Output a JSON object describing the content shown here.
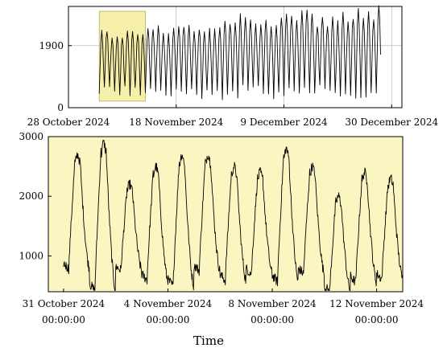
{
  "colors": {
    "highlight_fill": "#fbf6c1",
    "highlight_box": "#f5ec9a",
    "highlight_stroke": "#b5ad6a",
    "line": "#000000",
    "grid": "#bdbdbd"
  },
  "chart_data": [
    {
      "id": "overview",
      "type": "line",
      "title": "",
      "xlabel": "",
      "ylabel": "",
      "x_unit": "days since 28 October 2024",
      "xlim": [
        0,
        65
      ],
      "ylim": [
        0,
        3100
      ],
      "grid": true,
      "y_ticks": [
        {
          "value": 0,
          "label": "0"
        },
        {
          "value": 1900,
          "label": "1900"
        }
      ],
      "x_ticks": [
        {
          "value": 0,
          "label": "28 October 2024"
        },
        {
          "value": 21,
          "label": "18 November 2024"
        },
        {
          "value": 42,
          "label": "9 December 2024"
        },
        {
          "value": 63,
          "label": "30 December 2024"
        }
      ],
      "highlight_range": {
        "x": [
          6,
          15
        ],
        "y": [
          200,
          2950
        ]
      },
      "series": [
        {
          "name": "",
          "x_start": 6,
          "x_end": 61,
          "daily_cycle": true,
          "peak_range": [
            2000,
            3050
          ],
          "trough_range": [
            300,
            650
          ]
        }
      ]
    },
    {
      "id": "zoom",
      "type": "line",
      "title": "",
      "xlabel": "Time",
      "ylabel": "",
      "xlim": [
        "2024-10-30T10:00",
        "2024-11-13T00:00"
      ],
      "ylim": [
        400,
        3000
      ],
      "grid": false,
      "y_ticks": [
        {
          "value": 1000,
          "label": "1000"
        },
        {
          "value": 2000,
          "label": "2000"
        },
        {
          "value": 3000,
          "label": "3000"
        }
      ],
      "x_ticks": [
        {
          "value": "2024-10-31T00:00",
          "line1": "31 October 2024",
          "line2": "00:00:00"
        },
        {
          "value": "2024-11-04T00:00",
          "line1": "4 November 2024",
          "line2": "00:00:00"
        },
        {
          "value": "2024-11-08T00:00",
          "line1": "8 November 2024",
          "line2": "00:00:00"
        },
        {
          "value": "2024-11-12T00:00",
          "line1": "12 November 2024",
          "line2": "00:00:00"
        }
      ],
      "series": [
        {
          "name": "",
          "x_start": "2024-10-31T00:00",
          "x_end": "2024-11-13T00:00",
          "daily_peaks": [
            {
              "date": "2024-11-01",
              "value": 2700
            },
            {
              "date": "2024-11-02",
              "value": 2900
            },
            {
              "date": "2024-11-03",
              "value": 2200
            },
            {
              "date": "2024-11-04",
              "value": 2500
            },
            {
              "date": "2024-11-05",
              "value": 2700
            },
            {
              "date": "2024-11-06",
              "value": 2700
            },
            {
              "date": "2024-11-07",
              "value": 2500
            },
            {
              "date": "2024-11-08",
              "value": 2400
            },
            {
              "date": "2024-11-09",
              "value": 2800
            },
            {
              "date": "2024-11-10",
              "value": 2500
            },
            {
              "date": "2024-11-11",
              "value": 2000
            },
            {
              "date": "2024-11-12",
              "value": 2400
            },
            {
              "date": "2024-11-13",
              "value": 2300
            }
          ],
          "trough_range": [
            400,
            800
          ]
        }
      ]
    }
  ]
}
